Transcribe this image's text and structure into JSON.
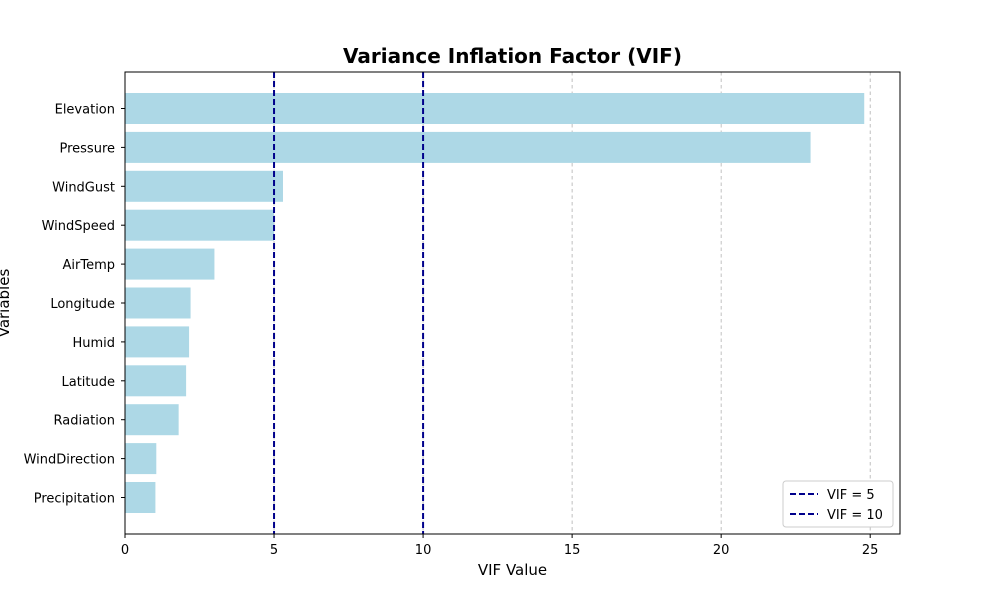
{
  "chart_data": {
    "type": "bar",
    "orientation": "horizontal",
    "title": "Variance Inflation Factor (VIF)",
    "xlabel": "VIF Value",
    "ylabel": "Variables",
    "categories": [
      "Elevation",
      "Pressure",
      "WindGust",
      "WindSpeed",
      "AirTemp",
      "Longitude",
      "Humid",
      "Latitude",
      "Radiation",
      "WindDirection",
      "Precipitation"
    ],
    "values": [
      24.8,
      23.0,
      5.3,
      5.0,
      3.0,
      2.2,
      2.15,
      2.05,
      1.8,
      1.05,
      1.02
    ],
    "xlim": [
      0,
      26
    ],
    "xticks": [
      0,
      5,
      10,
      15,
      20,
      25
    ],
    "grid": "vertical-dashed",
    "bar_color": "#add8e6",
    "reference_lines": [
      {
        "label": "VIF = 5",
        "value": 5,
        "color": "#00008b",
        "style": "dashed"
      },
      {
        "label": "VIF = 10",
        "value": 10,
        "color": "#00008b",
        "style": "dashed"
      }
    ],
    "legend_position": "bottom-right"
  }
}
